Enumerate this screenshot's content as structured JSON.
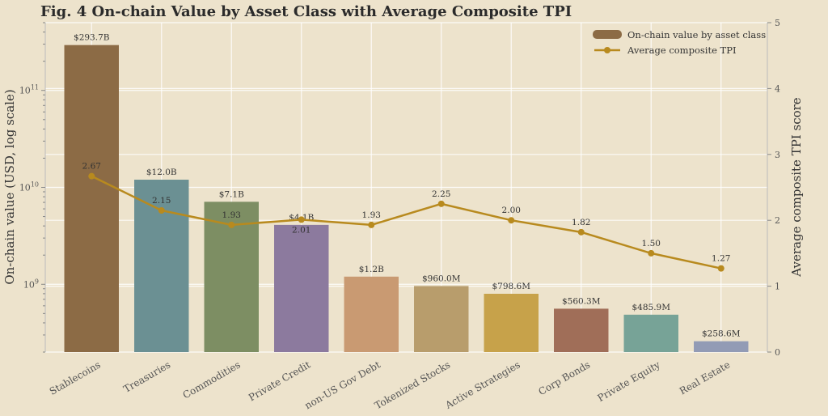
{
  "title": "Fig. 4  On-chain Value by Asset Class with Average Composite TPI",
  "colors": {
    "background": "#ede3cc",
    "grid": "#ffffff",
    "line": "#b88a1e",
    "bars": [
      "#8c6b45",
      "#6b9093",
      "#7d8e63",
      "#8c7a9e",
      "#c99a72",
      "#b89d6c",
      "#c7a24a",
      "#a06e58",
      "#77a397",
      "#929bb5"
    ]
  },
  "chart_data": {
    "type": "bar",
    "combo": "bar + line (secondary axis)",
    "categories": [
      "Stablecoins",
      "Treasuries",
      "Commodities",
      "Private Credit",
      "non-US Gov Debt",
      "Tokenized Stocks",
      "Active Strategies",
      "Corp Bonds",
      "Private Equity",
      "Real Estate"
    ],
    "series": [
      {
        "name": "On-chain value by asset class",
        "type": "bar",
        "axis": "left",
        "values": [
          293700000000,
          12000000000,
          7100000000,
          4100000000,
          1200000000,
          960000000,
          798600000,
          560300000,
          485900000,
          258600000
        ],
        "labels": [
          "$293.7B",
          "$12.0B",
          "$7.1B",
          "$4.1B",
          "$1.2B",
          "$960.0M",
          "$798.6M",
          "$560.3M",
          "$485.9M",
          "$258.6M"
        ]
      },
      {
        "name": "Average composite TPI",
        "type": "line",
        "axis": "right",
        "values": [
          2.67,
          2.15,
          1.93,
          2.01,
          1.93,
          2.25,
          2.0,
          1.82,
          1.5,
          1.27
        ],
        "labels": [
          "2.67",
          "2.15",
          "1.93",
          "2.01",
          "1.93",
          "2.25",
          "2.00",
          "1.82",
          "1.50",
          "1.27"
        ]
      }
    ],
    "ylabel": "On-chain value (USD, log scale)",
    "y2label": "Average composite TPI score",
    "yscale": "log",
    "ylim": [
      200000000,
      500000000000
    ],
    "yticks": [
      {
        "value": 1000000000,
        "base": "10",
        "exp": "9"
      },
      {
        "value": 10000000000,
        "base": "10",
        "exp": "10"
      },
      {
        "value": 100000000000,
        "base": "10",
        "exp": "11"
      }
    ],
    "y2lim": [
      0,
      5
    ],
    "y2ticks": [
      "0",
      "1",
      "2",
      "3",
      "4",
      "5"
    ],
    "grid": true,
    "legend": "top-right"
  }
}
